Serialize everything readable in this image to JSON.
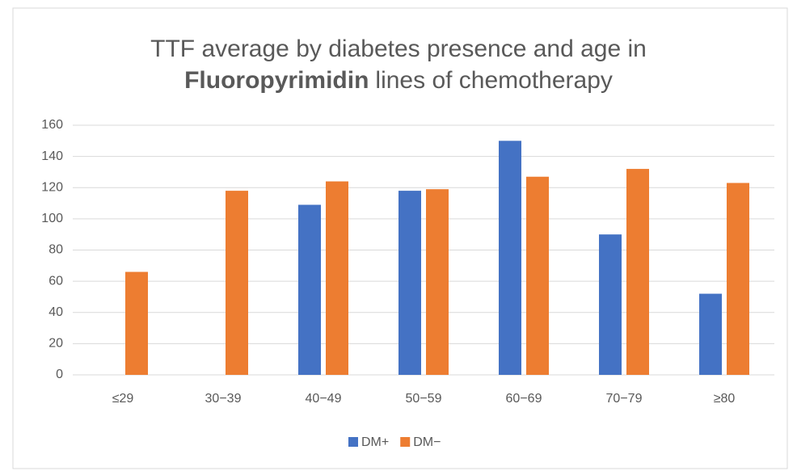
{
  "chart_data": {
    "type": "bar",
    "title": [
      {
        "text": "TTF average by diabetes presence  and age in",
        "bold": false,
        "line": 0
      },
      {
        "text": "Fluoropyrimidin",
        "bold": true,
        "line": 1
      },
      {
        "text": "lines of chemotherapy",
        "bold": false,
        "line": 1
      }
    ],
    "categories": [
      "≤29",
      "30−39",
      "40−49",
      "50−59",
      "60−69",
      "70−79",
      "≥80"
    ],
    "series": [
      {
        "name": "DM+",
        "color": "#4472c4",
        "values": [
          null,
          null,
          109,
          118,
          150,
          90,
          52
        ]
      },
      {
        "name": "DM−",
        "color": "#ed7d31",
        "values": [
          66,
          118,
          124,
          119,
          127,
          132,
          123
        ]
      }
    ],
    "ylim": [
      0,
      160
    ],
    "yticks": [
      0,
      20,
      40,
      60,
      80,
      100,
      120,
      140,
      160
    ],
    "grid": true,
    "legend": "bottom"
  }
}
